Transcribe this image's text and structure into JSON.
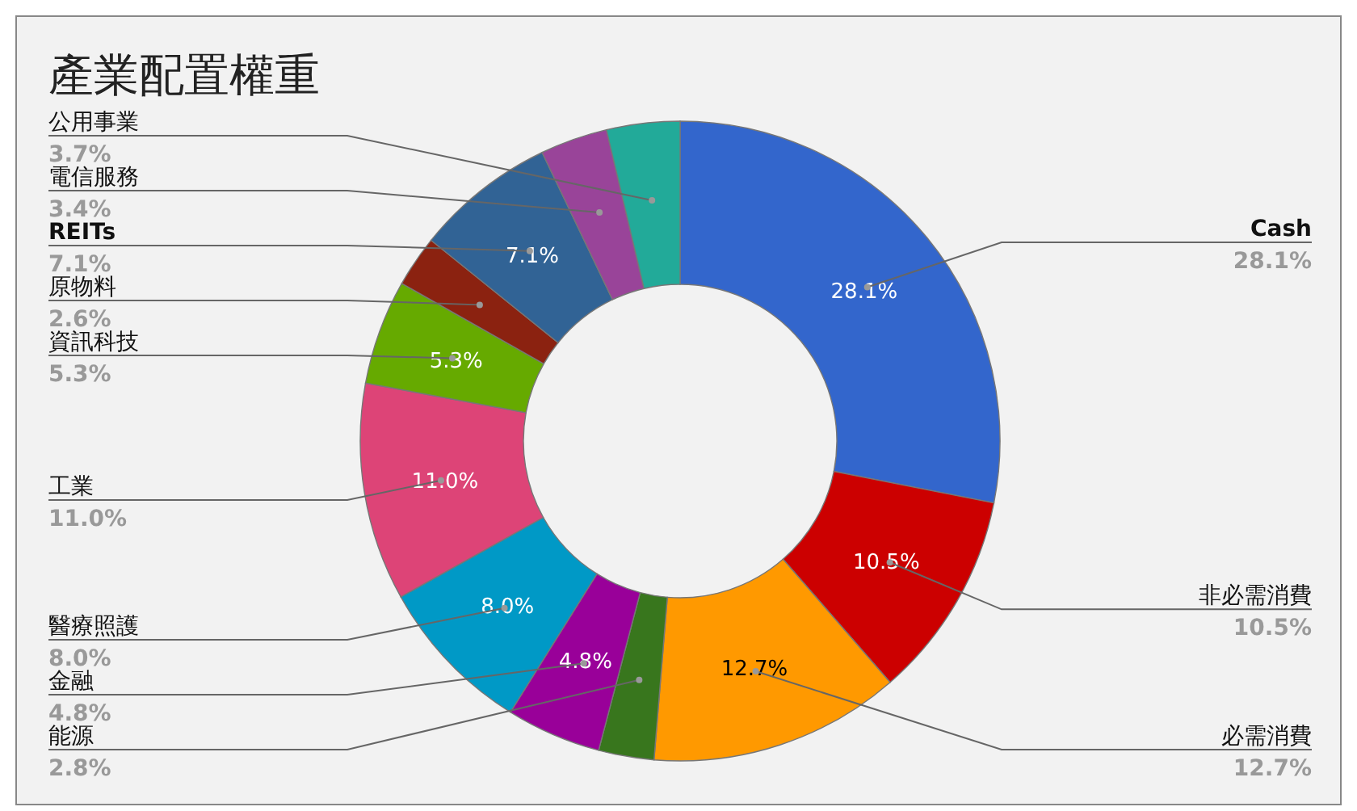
{
  "chart_data": {
    "type": "donut",
    "title": "產業配置權重",
    "categories": [
      "Cash",
      "非必需消費",
      "必需消費",
      "能源",
      "金融",
      "醫療照護",
      "工業",
      "資訊科技",
      "原物料",
      "REITs",
      "電信服務",
      "公用事業"
    ],
    "values": [
      28.1,
      10.5,
      12.7,
      2.8,
      4.8,
      8.0,
      11.0,
      5.3,
      2.6,
      7.1,
      3.4,
      3.7
    ],
    "colors": [
      "#3366cc",
      "#cc0000",
      "#ff9900",
      "#38761d",
      "#990099",
      "#0099c6",
      "#dd4477",
      "#66aa00",
      "#8b2210",
      "#316395",
      "#994499",
      "#22aa99"
    ],
    "value_labels": [
      "28.1%",
      "10.5%",
      "12.7%",
      "2.8%",
      "4.8%",
      "8.0%",
      "11.0%",
      "5.3%",
      "2.6%",
      "7.1%",
      "3.4%",
      "3.7%"
    ],
    "annotations": [
      {
        "text": "28.1%",
        "x": "Cash"
      },
      {
        "text": "10.5%",
        "x": "非必需消費"
      },
      {
        "text": "12.7%",
        "x": "必需消費"
      },
      {
        "text": "4.8%",
        "x": "金融"
      },
      {
        "text": "8.0%",
        "x": "醫療照護"
      },
      {
        "text": "11.0%",
        "x": "工業"
      },
      {
        "text": "5.3%",
        "x": "資訊科技"
      },
      {
        "text": "7.1%",
        "x": "REITs"
      }
    ]
  }
}
